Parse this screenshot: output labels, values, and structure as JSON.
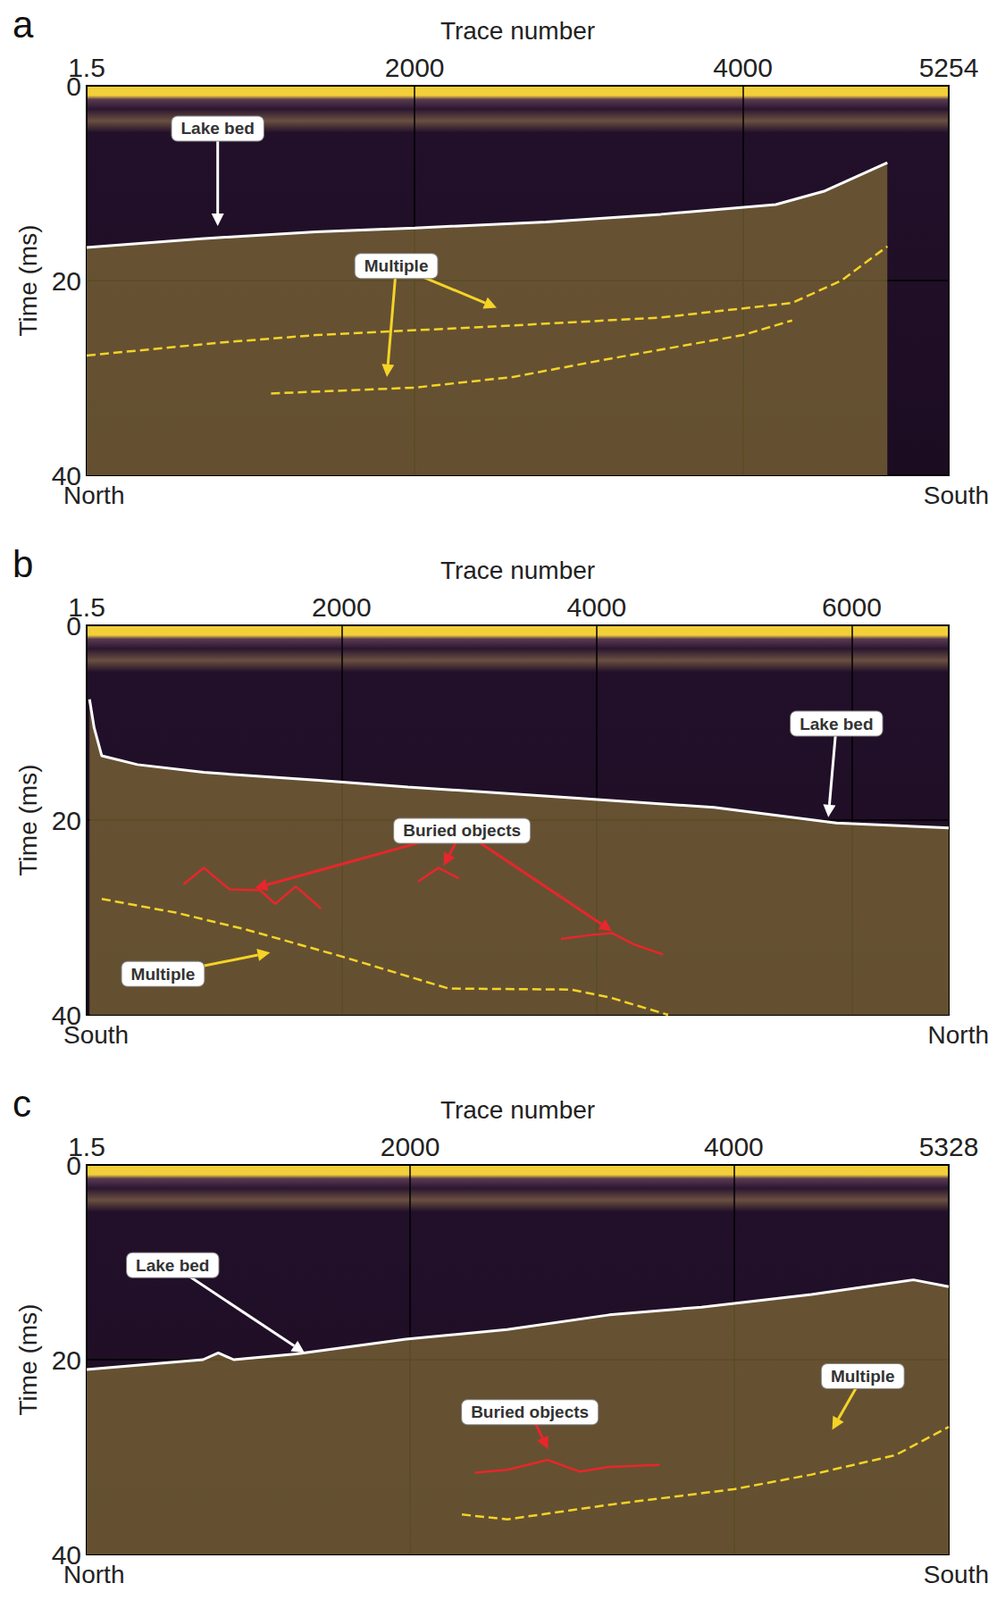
{
  "chart_data": [
    {
      "type": "line",
      "panel": "a",
      "x_label": "Trace number",
      "y_label": "Time (ms)",
      "xlim": [
        1.5,
        5254
      ],
      "xticks": [
        1.5,
        2000,
        4000,
        5254
      ],
      "ylim": [
        0,
        40
      ],
      "yticks": [
        0,
        20,
        40
      ],
      "grid": true,
      "x_end_labels": [
        "North",
        "South"
      ],
      "series": [
        {
          "name": "Lake bed",
          "type": "area",
          "color": "#ffffff",
          "line_style": "solid",
          "x": [
            1.5,
            700,
            1400,
            2000,
            2800,
            3500,
            4200,
            4500,
            4880
          ],
          "values": [
            16.6,
            15.7,
            15.0,
            14.6,
            14.0,
            13.2,
            12.2,
            10.8,
            7.9
          ]
        },
        {
          "name": "Multiple",
          "type": "line",
          "color": "#f5d327",
          "line_style": "dashed",
          "x": [
            1.5,
            800,
            1400,
            2500,
            3500,
            4300,
            4600,
            4880
          ],
          "values": [
            27.7,
            26.4,
            25.6,
            24.7,
            23.8,
            22.3,
            20.0,
            16.5
          ]
        },
        {
          "name": "Multiple",
          "type": "line",
          "color": "#f5d327",
          "line_style": "dashed",
          "x": [
            1125,
            2000,
            2600,
            3200,
            4000,
            4300
          ],
          "values": [
            31.6,
            31.0,
            29.9,
            28.0,
            25.6,
            24.1
          ]
        }
      ],
      "annotations": [
        {
          "text": "Lake bed",
          "color": "#ffffff",
          "x": 800,
          "y": 4.4,
          "arrows": [
            {
              "x": 800,
              "y": 14.4
            }
          ]
        },
        {
          "text": "Multiple",
          "color": "#f5d327",
          "x": 1888,
          "y": 18.5,
          "arrows": [
            {
              "x": 2500,
              "y": 22.8
            },
            {
              "x": 1831,
              "y": 29.9
            }
          ]
        }
      ]
    },
    {
      "type": "line",
      "panel": "b",
      "x_label": "Trace number",
      "y_label": "Time (ms)",
      "xlim": [
        1.5,
        6760
      ],
      "xticks": [
        1.5,
        2000,
        4000,
        6000
      ],
      "ylim": [
        0,
        40
      ],
      "yticks": [
        0,
        20,
        40
      ],
      "grid": true,
      "x_end_labels": [
        "South",
        "North"
      ],
      "series": [
        {
          "name": "Lake bed",
          "type": "area",
          "color": "#ffffff",
          "line_style": "solid",
          "x": [
            24,
            60,
            120,
            400,
            920,
            1800,
            2520,
            3800,
            4920,
            5880,
            6760
          ],
          "values": [
            7.6,
            10.5,
            13.4,
            14.3,
            15.1,
            15.9,
            16.6,
            17.7,
            18.7,
            20.3,
            20.8
          ]
        },
        {
          "name": "Multiple",
          "type": "line",
          "color": "#f5d327",
          "line_style": "dashed",
          "x": [
            120,
            700,
            1240,
            2000,
            2840,
            3800,
            4100,
            4560
          ],
          "values": [
            28.1,
            29.5,
            31.2,
            34.0,
            37.3,
            37.4,
            38.2,
            40.0
          ]
        },
        {
          "name": "Buried objects",
          "type": "line",
          "color": "#e8262b",
          "line_style": "solid",
          "x": [
            760,
            920,
            1120,
            1360,
            1480,
            1640,
            1840
          ],
          "values": [
            26.6,
            24.9,
            27.1,
            27.2,
            28.6,
            26.8,
            29.1
          ]
        },
        {
          "name": "Buried objects",
          "type": "line",
          "color": "#e8262b",
          "line_style": "solid",
          "x": [
            2600,
            2760,
            2920
          ],
          "values": [
            26.3,
            24.9,
            26.0
          ]
        },
        {
          "name": "Buried objects",
          "type": "line",
          "color": "#e8262b",
          "line_style": "solid",
          "x": [
            3720,
            3950,
            4120,
            4300,
            4520
          ],
          "values": [
            32.2,
            31.8,
            31.6,
            32.8,
            33.8
          ]
        }
      ],
      "annotations": [
        {
          "text": "Lake bed",
          "color": "#ffffff",
          "x": 5880,
          "y": 10.1,
          "arrows": [
            {
              "x": 5816,
              "y": 19.7
            }
          ]
        },
        {
          "text": "Buried objects",
          "color": "#e8262b",
          "x": 2944,
          "y": 21.1,
          "arrows": [
            {
              "x": 1320,
              "y": 27.0
            },
            {
              "x": 2800,
              "y": 24.7
            },
            {
              "x": 4120,
              "y": 31.4
            }
          ]
        },
        {
          "text": "Multiple",
          "color": "#f5d327",
          "x": 600,
          "y": 35.8,
          "arrows": [
            {
              "x": 1440,
              "y": 33.6
            }
          ]
        }
      ]
    },
    {
      "type": "line",
      "panel": "c",
      "x_label": "Trace number",
      "y_label": "Time (ms)",
      "xlim": [
        1.5,
        5328
      ],
      "xticks": [
        1.5,
        2000,
        4000,
        5328
      ],
      "ylim": [
        0,
        40
      ],
      "yticks": [
        0,
        20,
        40
      ],
      "grid": true,
      "x_end_labels": [
        "North",
        "South"
      ],
      "series": [
        {
          "name": "Lake bed",
          "type": "area",
          "color": "#ffffff",
          "line_style": "solid",
          "x": [
            1.5,
            720,
            815,
            910,
            1300,
            1975,
            2600,
            3230,
            3800,
            4480,
            5110,
            5328
          ],
          "values": [
            21.0,
            20.0,
            19.3,
            20.0,
            19.4,
            17.9,
            16.9,
            15.4,
            14.6,
            13.3,
            11.8,
            12.5
          ]
        },
        {
          "name": "Multiple",
          "type": "line",
          "color": "#f5d327",
          "line_style": "dashed",
          "x": [
            2320,
            2600,
            3230,
            4000,
            4480,
            5000,
            5328
          ],
          "values": [
            35.9,
            36.4,
            34.9,
            33.3,
            31.8,
            29.8,
            26.9
          ]
        },
        {
          "name": "Buried objects",
          "type": "line",
          "color": "#e8262b",
          "line_style": "solid",
          "x": [
            2400,
            2600,
            2850,
            3050,
            3230,
            3540
          ],
          "values": [
            31.6,
            31.3,
            30.3,
            31.5,
            31.0,
            30.8
          ]
        }
      ],
      "annotations": [
        {
          "text": "Lake bed",
          "color": "#ffffff",
          "x": 533,
          "y": 10.3,
          "arrows": [
            {
              "x": 1348,
              "y": 19.3
            }
          ]
        },
        {
          "text": "Buried objects",
          "color": "#e8262b",
          "x": 2740,
          "y": 25.4,
          "arrows": [
            {
              "x": 2853,
              "y": 29.2
            }
          ]
        },
        {
          "text": "Multiple",
          "color": "#f5d327",
          "x": 4797,
          "y": 21.7,
          "arrows": [
            {
              "x": 4608,
              "y": 27.2
            }
          ]
        }
      ]
    }
  ]
}
